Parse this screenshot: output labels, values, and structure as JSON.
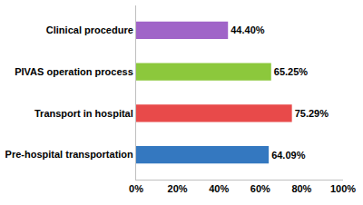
{
  "chart_data": {
    "type": "bar",
    "orientation": "horizontal",
    "categories": [
      "Clinical procedure",
      "PIVAS operation process",
      "Transport in hospital",
      "Pre-hospital transportation"
    ],
    "values": [
      44.4,
      65.25,
      75.29,
      64.09
    ],
    "value_labels": [
      "44.40%",
      "65.25%",
      "75.29%",
      "64.09%"
    ],
    "colors": [
      "#a064c8",
      "#8cc83c",
      "#e84a4a",
      "#3478c0"
    ],
    "data_labels": true,
    "xlim": [
      0,
      100
    ],
    "xticks": [
      {
        "value": 0,
        "label": "0%"
      },
      {
        "value": 20,
        "label": "20%"
      },
      {
        "value": 40,
        "label": "40%"
      },
      {
        "value": 60,
        "label": "60%"
      },
      {
        "value": 80,
        "label": "80%"
      },
      {
        "value": 100,
        "label": "100%"
      }
    ],
    "grid": false
  }
}
